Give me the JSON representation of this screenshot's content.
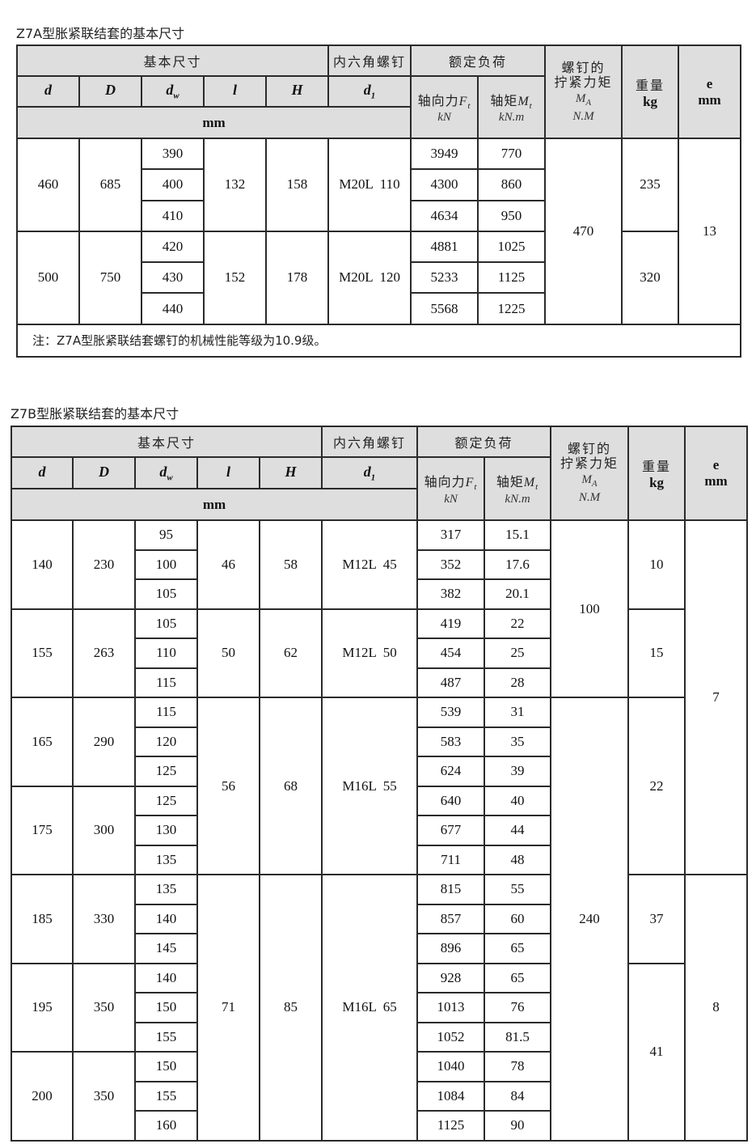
{
  "header": {
    "basic_dims": "基本尺寸",
    "screw": "内六角螺钉",
    "rated_load": "额定负荷",
    "torque_line1": "螺钉的",
    "torque_line2": "拧紧力矩",
    "torque_symbol": "M",
    "torque_symbol_sub": "A",
    "torque_unit": "N.M",
    "weight": "重量",
    "weight_unit": "kg",
    "e": "e",
    "e_unit": "mm",
    "cols": [
      {
        "main": "d",
        "sub": ""
      },
      {
        "main": "D",
        "sub": ""
      },
      {
        "main": "d",
        "sub": "w"
      },
      {
        "main": "l",
        "sub": ""
      },
      {
        "main": "H",
        "sub": ""
      },
      {
        "main": "d",
        "sub": "1"
      }
    ],
    "axial_force": "轴向力",
    "axial_force_symbol": "F",
    "axial_force_sub": "t",
    "axial_force_unit": "kN",
    "torque": "轴矩",
    "torque_sym": "M",
    "torque_sub": "t",
    "torque_unit_t": "kN.m",
    "mm": "mm"
  },
  "tableA": {
    "title": "Z7A型胀紧联结套的基本尺寸",
    "note": "注：Z7A型胀紧联结套螺钉的机械性能等级为10.9级。",
    "columns": [
      [
        {
          "v": "460",
          "r": 3
        },
        {
          "v": "500",
          "r": 3
        }
      ],
      [
        {
          "v": "685",
          "r": 3
        },
        {
          "v": "750",
          "r": 3
        }
      ],
      [
        {
          "v": "390",
          "r": 1
        },
        {
          "v": "400",
          "r": 1
        },
        {
          "v": "410",
          "r": 1
        },
        {
          "v": "420",
          "r": 1
        },
        {
          "v": "430",
          "r": 1
        },
        {
          "v": "440",
          "r": 1
        }
      ],
      [
        {
          "v": "132",
          "r": 3
        },
        {
          "v": "152",
          "r": 3
        }
      ],
      [
        {
          "v": "158",
          "r": 3
        },
        {
          "v": "178",
          "r": 3
        }
      ],
      [
        {
          "v": "M20L  110",
          "r": 3
        },
        {
          "v": "M20L  120",
          "r": 3
        }
      ],
      [
        {
          "v": "3949",
          "r": 1
        },
        {
          "v": "4300",
          "r": 1
        },
        {
          "v": "4634",
          "r": 1
        },
        {
          "v": "4881",
          "r": 1
        },
        {
          "v": "5233",
          "r": 1
        },
        {
          "v": "5568",
          "r": 1
        }
      ],
      [
        {
          "v": "770",
          "r": 1
        },
        {
          "v": "860",
          "r": 1
        },
        {
          "v": "950",
          "r": 1
        },
        {
          "v": "1025",
          "r": 1
        },
        {
          "v": "1125",
          "r": 1
        },
        {
          "v": "1225",
          "r": 1
        }
      ],
      [
        {
          "v": "470",
          "r": 6
        }
      ],
      [
        {
          "v": "235",
          "r": 3
        },
        {
          "v": "320",
          "r": 3
        }
      ],
      [
        {
          "v": "13",
          "r": 6
        }
      ]
    ]
  },
  "tableB": {
    "title": "Z7B型胀紧联结套的基本尺寸",
    "columns": [
      [
        {
          "v": "140",
          "r": 3
        },
        {
          "v": "155",
          "r": 3
        },
        {
          "v": "165",
          "r": 3
        },
        {
          "v": "175",
          "r": 3
        },
        {
          "v": "185",
          "r": 3
        },
        {
          "v": "195",
          "r": 3
        },
        {
          "v": "200",
          "r": 3
        }
      ],
      [
        {
          "v": "230",
          "r": 3
        },
        {
          "v": "263",
          "r": 3
        },
        {
          "v": "290",
          "r": 3
        },
        {
          "v": "300",
          "r": 3
        },
        {
          "v": "330",
          "r": 3
        },
        {
          "v": "350",
          "r": 3
        },
        {
          "v": "350",
          "r": 3
        }
      ],
      [
        {
          "v": "95",
          "r": 1
        },
        {
          "v": "100",
          "r": 1
        },
        {
          "v": "105",
          "r": 1
        },
        {
          "v": "105",
          "r": 1
        },
        {
          "v": "110",
          "r": 1
        },
        {
          "v": "115",
          "r": 1
        },
        {
          "v": "115",
          "r": 1
        },
        {
          "v": "120",
          "r": 1
        },
        {
          "v": "125",
          "r": 1
        },
        {
          "v": "125",
          "r": 1
        },
        {
          "v": "130",
          "r": 1
        },
        {
          "v": "135",
          "r": 1
        },
        {
          "v": "135",
          "r": 1
        },
        {
          "v": "140",
          "r": 1
        },
        {
          "v": "145",
          "r": 1
        },
        {
          "v": "140",
          "r": 1
        },
        {
          "v": "150",
          "r": 1
        },
        {
          "v": "155",
          "r": 1
        },
        {
          "v": "150",
          "r": 1
        },
        {
          "v": "155",
          "r": 1
        },
        {
          "v": "160",
          "r": 1
        }
      ],
      [
        {
          "v": "46",
          "r": 3
        },
        {
          "v": "50",
          "r": 3
        },
        {
          "v": "56",
          "r": 6
        },
        {
          "v": "71",
          "r": 9
        }
      ],
      [
        {
          "v": "58",
          "r": 3
        },
        {
          "v": "62",
          "r": 3
        },
        {
          "v": "68",
          "r": 6
        },
        {
          "v": "85",
          "r": 9
        }
      ],
      [
        {
          "v": "M12L  45",
          "r": 3
        },
        {
          "v": "M12L  50",
          "r": 3
        },
        {
          "v": "M16L  55",
          "r": 6
        },
        {
          "v": "M16L  65",
          "r": 9
        }
      ],
      [
        {
          "v": "317",
          "r": 1
        },
        {
          "v": "352",
          "r": 1
        },
        {
          "v": "382",
          "r": 1
        },
        {
          "v": "419",
          "r": 1
        },
        {
          "v": "454",
          "r": 1
        },
        {
          "v": "487",
          "r": 1
        },
        {
          "v": "539",
          "r": 1
        },
        {
          "v": "583",
          "r": 1
        },
        {
          "v": "624",
          "r": 1
        },
        {
          "v": "640",
          "r": 1
        },
        {
          "v": "677",
          "r": 1
        },
        {
          "v": "711",
          "r": 1
        },
        {
          "v": "815",
          "r": 1
        },
        {
          "v": "857",
          "r": 1
        },
        {
          "v": "896",
          "r": 1
        },
        {
          "v": "928",
          "r": 1
        },
        {
          "v": "1013",
          "r": 1
        },
        {
          "v": "1052",
          "r": 1
        },
        {
          "v": "1040",
          "r": 1
        },
        {
          "v": "1084",
          "r": 1
        },
        {
          "v": "1125",
          "r": 1
        }
      ],
      [
        {
          "v": "15.1",
          "r": 1
        },
        {
          "v": "17.6",
          "r": 1
        },
        {
          "v": "20.1",
          "r": 1
        },
        {
          "v": "22",
          "r": 1
        },
        {
          "v": "25",
          "r": 1
        },
        {
          "v": "28",
          "r": 1
        },
        {
          "v": "31",
          "r": 1
        },
        {
          "v": "35",
          "r": 1
        },
        {
          "v": "39",
          "r": 1
        },
        {
          "v": "40",
          "r": 1
        },
        {
          "v": "44",
          "r": 1
        },
        {
          "v": "48",
          "r": 1
        },
        {
          "v": "55",
          "r": 1
        },
        {
          "v": "60",
          "r": 1
        },
        {
          "v": "65",
          "r": 1
        },
        {
          "v": "65",
          "r": 1
        },
        {
          "v": "76",
          "r": 1
        },
        {
          "v": "81.5",
          "r": 1
        },
        {
          "v": "78",
          "r": 1
        },
        {
          "v": "84",
          "r": 1
        },
        {
          "v": "90",
          "r": 1
        }
      ],
      [
        {
          "v": "100",
          "r": 6
        },
        {
          "v": "240",
          "r": 15
        }
      ],
      [
        {
          "v": "10",
          "r": 3
        },
        {
          "v": "15",
          "r": 3
        },
        {
          "v": "22",
          "r": 6
        },
        {
          "v": "37",
          "r": 3
        },
        {
          "v": "41",
          "r": 6
        }
      ],
      [
        {
          "v": "7",
          "r": 12
        },
        {
          "v": "8",
          "r": 9
        }
      ]
    ]
  }
}
